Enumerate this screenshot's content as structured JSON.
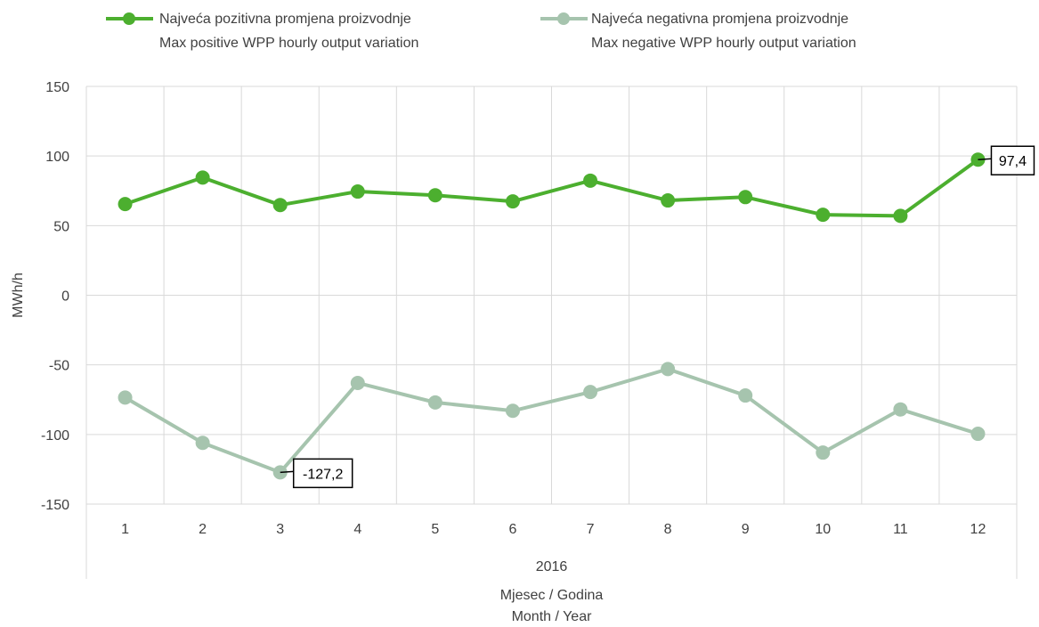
{
  "chart_data": {
    "type": "line",
    "x_categories": [
      "1",
      "2",
      "3",
      "4",
      "5",
      "6",
      "7",
      "8",
      "9",
      "10",
      "11",
      "12"
    ],
    "x_group_label": "2016",
    "xlabel": [
      "Mjesec / Godina",
      "Month / Year"
    ],
    "ylabel": "MWh/h",
    "ylim": [
      -150,
      150
    ],
    "y_ticks": [
      150,
      100,
      50,
      0,
      -50,
      -100,
      -150
    ],
    "grid": true,
    "legend_position": "top",
    "series": [
      {
        "name": [
          "Najveća pozitivna promjena proizvodnje",
          "Max positive WPP hourly output variation"
        ],
        "color": "#4caf2f",
        "values": [
          65.5,
          84.5,
          64.8,
          74.5,
          71.8,
          67.4,
          82.3,
          68.1,
          70.5,
          57.8,
          57.0,
          97.4
        ],
        "callout": {
          "index": 11,
          "label": "97,4"
        }
      },
      {
        "name": [
          "Najveća negativna promjena proizvodnje",
          "Max negative WPP hourly output variation"
        ],
        "color": "#a6c4ae",
        "values": [
          -73.5,
          -106.0,
          -127.2,
          -63.0,
          -77.0,
          -83.0,
          -69.5,
          -53.0,
          -72.0,
          -113.0,
          -82.0,
          -99.5
        ],
        "callout": {
          "index": 2,
          "label": "-127,2"
        }
      }
    ]
  }
}
